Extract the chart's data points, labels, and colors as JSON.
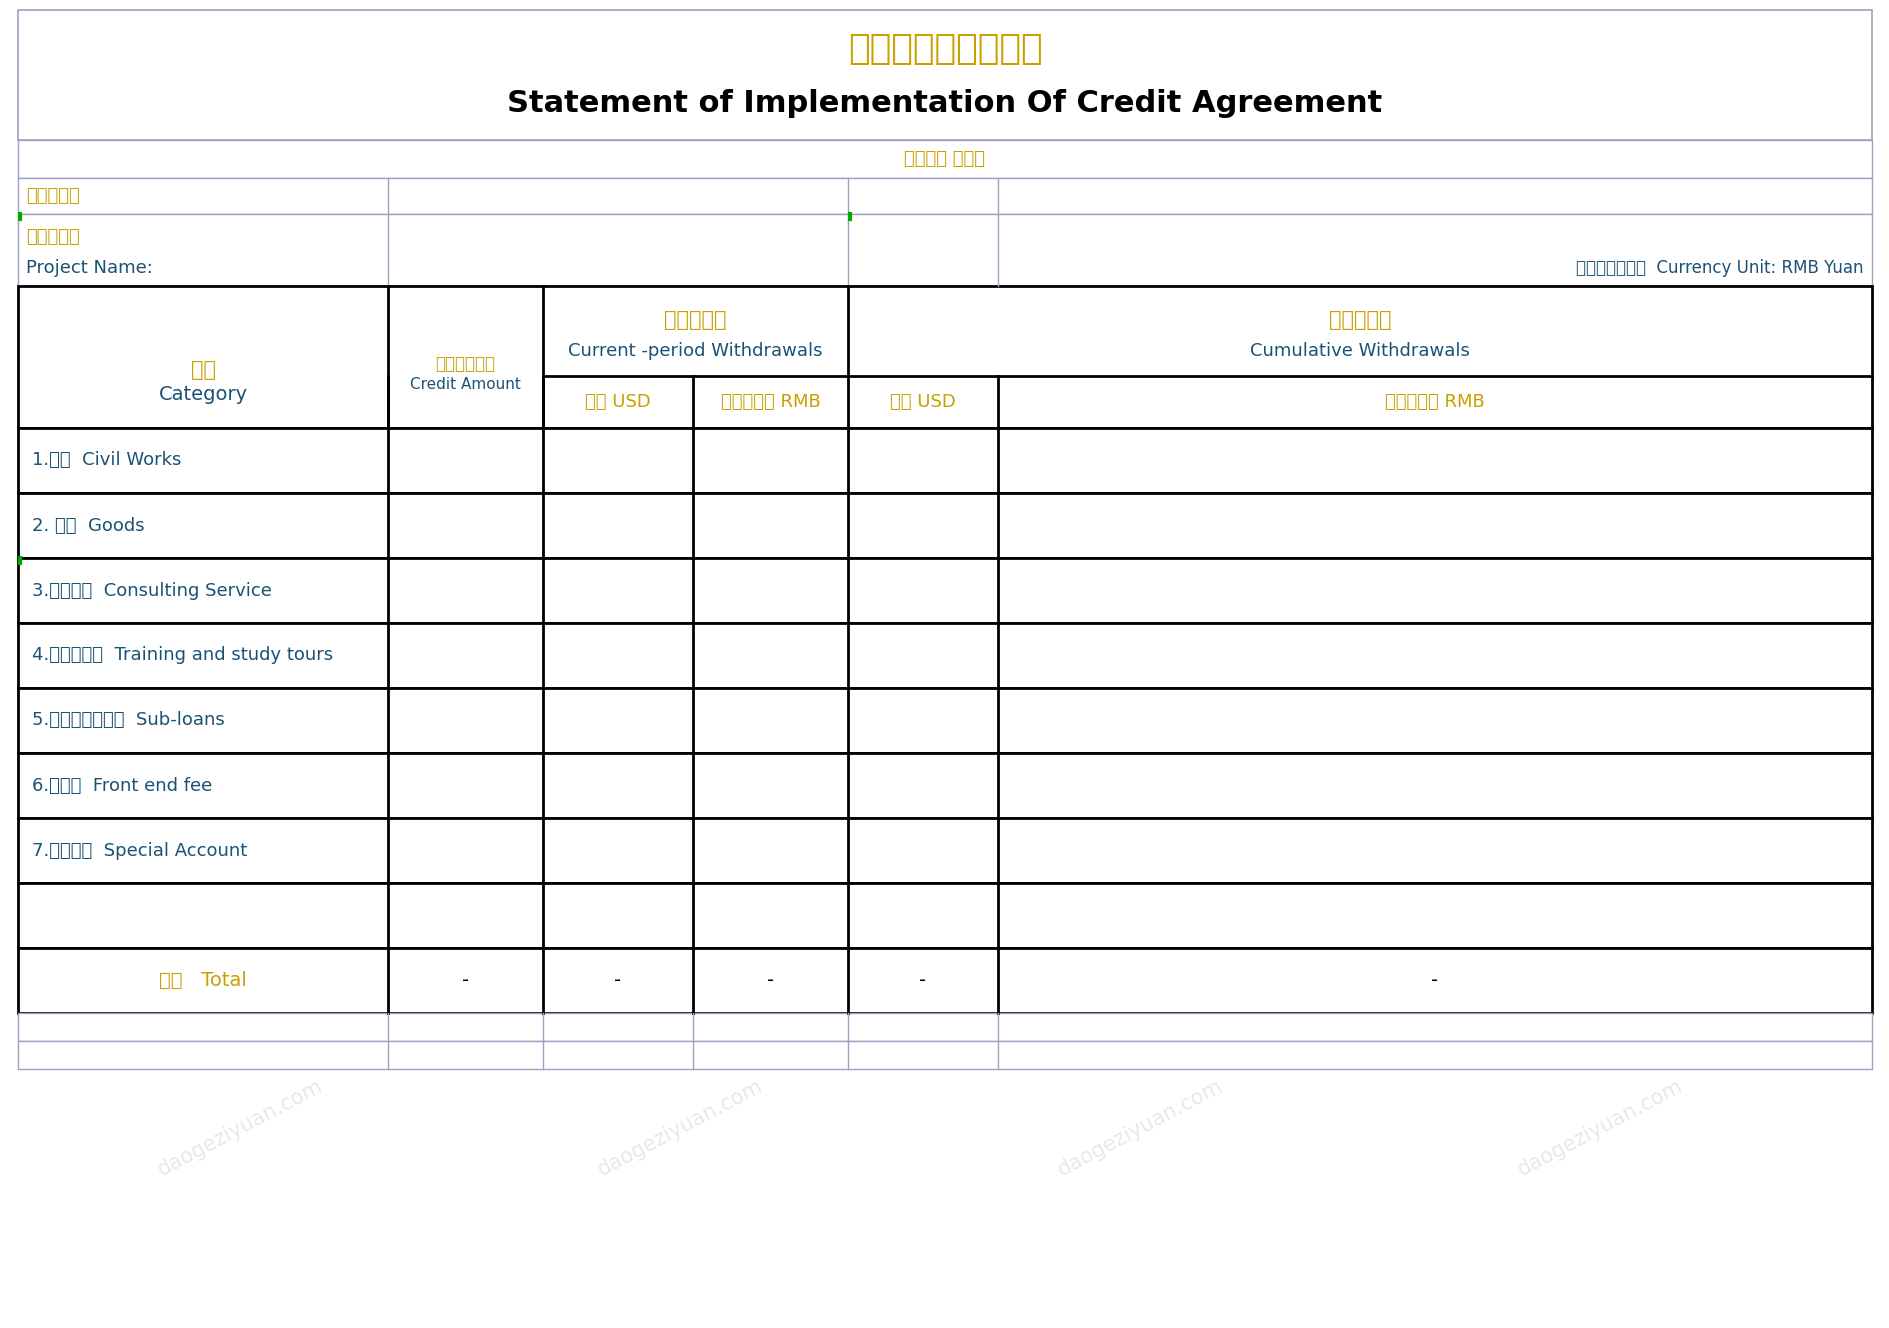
{
  "title_cn": "贷款协定执行情况表",
  "title_en": "Statement of Implementation Of Credit Agreement",
  "subtitle": "本期截至 年月日",
  "fill_unit_label": "填报单位：",
  "project_cn": "项目名称：",
  "project_en": "Project Name:",
  "unit_label": "单位：人民币元  Currency Unit: RMB Yuan",
  "col_headers": {
    "category_cn": "类别",
    "category_en": "Category",
    "credit_cn": "核定贷款金额",
    "credit_en": "Credit Amount",
    "current_cn": "本期提款数",
    "current_en": "Current -period Withdrawals",
    "cumulative_cn": "累计提款数",
    "cumulative_en": "Cumulative Withdrawals",
    "usd": "美元 USD",
    "rmb": "折合人民币 RMB"
  },
  "rows": [
    "1.工程  Civil Works",
    "2. 货物  Goods",
    "3.咨询服务  Consulting Service",
    "4.培训和考察  Training and study tours",
    "5.农田生产分贷款  Sub-loans",
    "6.先征费  Front end fee",
    "7.专用账户  Special Account",
    "",
    "总计   Total"
  ],
  "total_values": [
    "-",
    "-",
    "-",
    "-",
    "-"
  ],
  "bg_color": "#ffffff",
  "border_color": "#000000",
  "text_color_cn": "#c8a000",
  "text_color_en": "#1a5276",
  "text_color_black": "#000000",
  "light_border": "#a0a0c0",
  "green_mark": "#00aa00",
  "fig_width": 18.9,
  "fig_height": 13.28
}
